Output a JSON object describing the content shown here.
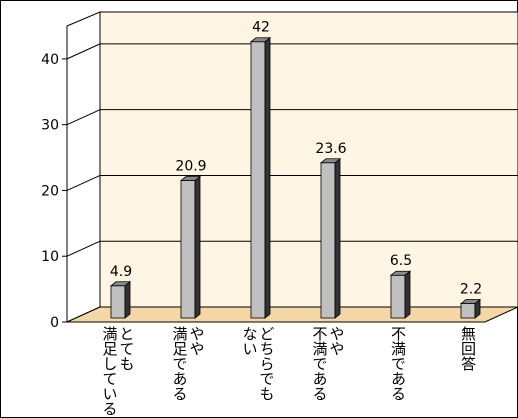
{
  "chart_data": {
    "type": "bar3d",
    "categories": [
      [
        "とても",
        "満足している"
      ],
      [
        "やや",
        "満足である"
      ],
      [
        "どちらでも",
        "ない"
      ],
      [
        "やや",
        "不満である"
      ],
      [
        "不満である"
      ],
      [
        "無回答"
      ]
    ],
    "values": [
      4.9,
      20.9,
      42,
      23.6,
      6.5,
      2.2
    ],
    "color": "#c0c0c0",
    "ylim": [
      0,
      45
    ],
    "yticks": [
      0,
      10,
      20,
      30,
      40
    ],
    "grid": true
  }
}
